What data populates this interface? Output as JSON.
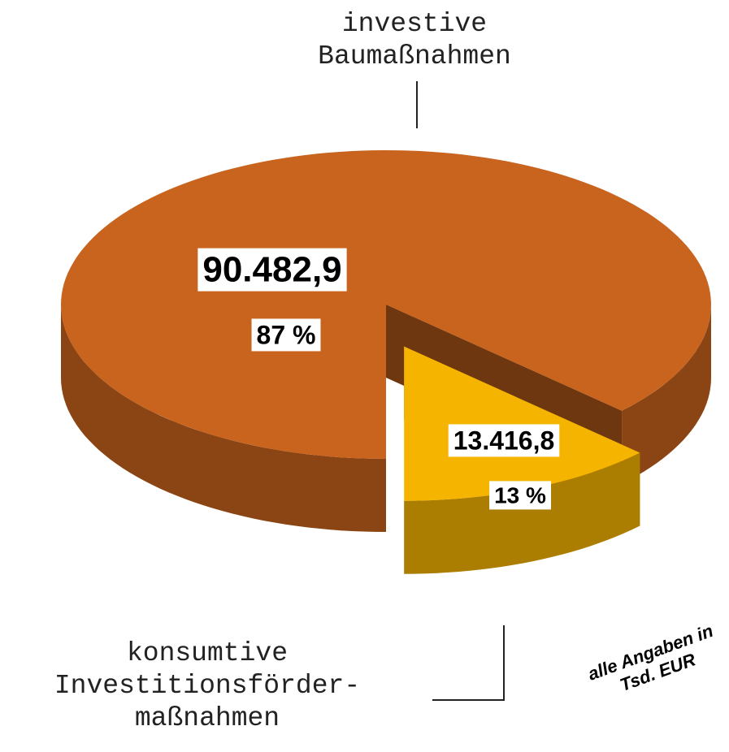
{
  "chart_data": {
    "type": "pie",
    "categories": [
      "investive Baumaßnahmen",
      "konsumtive Investitionsförder-maßnahmen"
    ],
    "values": [
      90482.9,
      13416.8
    ],
    "value_labels": [
      "90.482,9",
      "13.416,8"
    ],
    "percentages": [
      87,
      13
    ],
    "percentage_labels": [
      "87 %",
      "13 %"
    ],
    "colors": [
      "#c8641e",
      "#f5b400"
    ],
    "note": "alle Angaben in Tsd. EUR"
  }
}
